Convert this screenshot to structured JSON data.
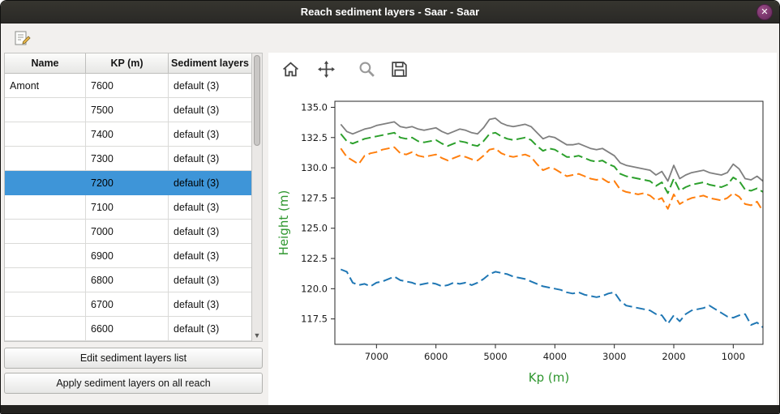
{
  "titlebar": {
    "title": "Reach sediment layers - Saar - Saar",
    "close_glyph": "✕"
  },
  "table": {
    "headers": [
      "Name",
      "KP (m)",
      "Sediment layers"
    ],
    "scroll_down_glyph": "▼",
    "rows": [
      {
        "name": "Amont",
        "kp": "7600",
        "layers": "default (3)",
        "selected": false
      },
      {
        "name": "",
        "kp": "7500",
        "layers": "default (3)",
        "selected": false
      },
      {
        "name": "",
        "kp": "7400",
        "layers": "default (3)",
        "selected": false
      },
      {
        "name": "",
        "kp": "7300",
        "layers": "default (3)",
        "selected": false
      },
      {
        "name": "",
        "kp": "7200",
        "layers": "default (3)",
        "selected": true
      },
      {
        "name": "",
        "kp": "7100",
        "layers": "default (3)",
        "selected": false
      },
      {
        "name": "",
        "kp": "7000",
        "layers": "default (3)",
        "selected": false
      },
      {
        "name": "",
        "kp": "6900",
        "layers": "default (3)",
        "selected": false
      },
      {
        "name": "",
        "kp": "6800",
        "layers": "default (3)",
        "selected": false
      },
      {
        "name": "",
        "kp": "6700",
        "layers": "default (3)",
        "selected": false
      },
      {
        "name": "",
        "kp": "6600",
        "layers": "default (3)",
        "selected": false
      }
    ]
  },
  "buttons": {
    "edit": "Edit sediment layers list",
    "apply": "Apply sediment layers on all reach"
  },
  "plot_toolbar": {
    "icons": [
      "home-icon",
      "pan-icon",
      "zoom-icon",
      "save-icon"
    ]
  },
  "chart_data": {
    "type": "line",
    "title": "",
    "xlabel": "Kp (m)",
    "ylabel": "Height (m)",
    "axis_label_color": "#2e962e",
    "tick_color": "#1a1a1a",
    "grid": false,
    "x_inverted": true,
    "xlim": [
      7700,
      500
    ],
    "ylim": [
      115.4,
      135.5
    ],
    "x_ticks": [
      7000,
      6000,
      5000,
      4000,
      3000,
      2000,
      1000
    ],
    "y_ticks": [
      135.0,
      132.5,
      130.0,
      127.5,
      125.0,
      122.5,
      120.0,
      117.5
    ],
    "x": [
      7600,
      7500,
      7400,
      7300,
      7200,
      7100,
      7000,
      6900,
      6800,
      6700,
      6600,
      6500,
      6400,
      6300,
      6200,
      6100,
      6000,
      5900,
      5800,
      5700,
      5600,
      5500,
      5400,
      5300,
      5200,
      5100,
      5000,
      4900,
      4800,
      4700,
      4600,
      4500,
      4400,
      4300,
      4200,
      4100,
      4000,
      3900,
      3800,
      3700,
      3600,
      3500,
      3400,
      3300,
      3200,
      3100,
      3000,
      2900,
      2800,
      2700,
      2600,
      2500,
      2400,
      2300,
      2200,
      2100,
      2000,
      1900,
      1800,
      1700,
      1600,
      1500,
      1400,
      1300,
      1200,
      1100,
      1000,
      900,
      800,
      700,
      600,
      500
    ],
    "series": [
      {
        "name": "layer-top-gray",
        "color": "#7f7f7f",
        "style": "solid",
        "values": [
          133.6,
          133.0,
          132.8,
          133.0,
          133.2,
          133.3,
          133.5,
          133.6,
          133.7,
          133.8,
          133.4,
          133.3,
          133.4,
          133.2,
          133.1,
          133.2,
          133.3,
          133.0,
          132.8,
          133.0,
          133.2,
          133.1,
          132.9,
          132.8,
          133.3,
          134.0,
          134.1,
          133.7,
          133.5,
          133.4,
          133.5,
          133.6,
          133.4,
          132.9,
          132.4,
          132.6,
          132.5,
          132.2,
          131.9,
          131.9,
          132.0,
          131.8,
          131.6,
          131.5,
          131.6,
          131.3,
          131.0,
          130.4,
          130.2,
          130.1,
          130.0,
          129.9,
          129.8,
          129.4,
          129.7,
          128.9,
          130.2,
          129.1,
          129.4,
          129.6,
          129.7,
          129.8,
          129.6,
          129.5,
          129.4,
          129.6,
          130.3,
          129.9,
          129.1,
          129.0,
          129.3,
          128.9
        ]
      },
      {
        "name": "layer-2-green",
        "color": "#2ca02c",
        "style": "dashed",
        "values": [
          132.8,
          132.2,
          132.0,
          132.2,
          132.4,
          132.5,
          132.6,
          132.7,
          132.8,
          132.9,
          132.5,
          132.4,
          132.5,
          132.2,
          132.1,
          132.2,
          132.3,
          132.0,
          131.8,
          132.0,
          132.2,
          132.1,
          131.9,
          131.8,
          132.2,
          132.8,
          132.9,
          132.6,
          132.4,
          132.3,
          132.4,
          132.5,
          132.3,
          131.8,
          131.4,
          131.6,
          131.5,
          131.2,
          130.9,
          130.9,
          131.0,
          130.8,
          130.6,
          130.5,
          130.6,
          130.3,
          130.1,
          129.5,
          129.3,
          129.2,
          129.1,
          129.0,
          128.9,
          128.5,
          128.8,
          127.9,
          129.1,
          128.1,
          128.4,
          128.6,
          128.7,
          128.8,
          128.6,
          128.5,
          128.4,
          128.6,
          129.2,
          128.9,
          128.2,
          128.1,
          128.3,
          128.0
        ]
      },
      {
        "name": "layer-3-orange",
        "color": "#ff7f0e",
        "style": "dashed",
        "values": [
          131.6,
          130.9,
          130.6,
          130.3,
          131.0,
          131.2,
          131.3,
          131.5,
          131.6,
          131.7,
          131.2,
          131.1,
          131.3,
          131.0,
          130.9,
          131.0,
          131.1,
          130.8,
          130.6,
          130.8,
          131.0,
          130.9,
          130.7,
          130.6,
          131.0,
          131.5,
          131.6,
          131.2,
          131.0,
          130.9,
          131.0,
          131.1,
          130.9,
          130.3,
          129.8,
          130.0,
          129.9,
          129.6,
          129.3,
          129.4,
          129.5,
          129.3,
          129.1,
          129.0,
          129.1,
          128.8,
          128.9,
          128.2,
          128.0,
          127.9,
          127.8,
          127.9,
          127.7,
          127.3,
          127.5,
          126.6,
          127.8,
          127.0,
          127.3,
          127.5,
          127.6,
          127.7,
          127.5,
          127.4,
          127.3,
          127.5,
          127.9,
          127.6,
          127.0,
          126.9,
          127.2,
          126.4
        ]
      },
      {
        "name": "layer-bottom-blue",
        "color": "#1f77b4",
        "style": "dashed",
        "values": [
          121.6,
          121.4,
          120.5,
          120.3,
          120.4,
          120.2,
          120.5,
          120.6,
          120.8,
          121.0,
          120.7,
          120.6,
          120.5,
          120.3,
          120.4,
          120.5,
          120.4,
          120.2,
          120.3,
          120.5,
          120.4,
          120.5,
          120.3,
          120.5,
          120.8,
          121.2,
          121.4,
          121.3,
          121.2,
          121.0,
          120.9,
          120.8,
          120.6,
          120.4,
          120.2,
          120.1,
          120.0,
          119.9,
          119.7,
          119.6,
          119.7,
          119.5,
          119.4,
          119.3,
          119.4,
          119.6,
          119.7,
          119.0,
          118.6,
          118.5,
          118.4,
          118.3,
          118.2,
          117.9,
          117.8,
          117.1,
          117.8,
          117.3,
          117.9,
          118.2,
          118.3,
          118.4,
          118.6,
          118.3,
          118.0,
          117.7,
          117.6,
          117.8,
          117.9,
          117.0,
          117.2,
          116.8
        ]
      }
    ]
  }
}
